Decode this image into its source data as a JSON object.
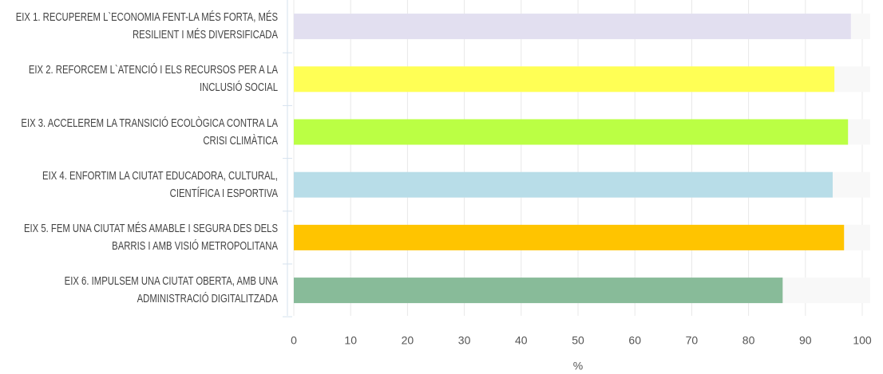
{
  "chart_data": {
    "type": "hbar",
    "categories": [
      "EIX 1. RECUPEREM L`ECONOMIA FENT-LA MÉS FORTA, MÉS RESILIENT I MÉS DIVERSIFICADA",
      "EIX 2. REFORCEM L`ATENCIÓ I ELS RECURSOS PER A LA INCLUSIÓ SOCIAL",
      "EIX 3. ACCELEREM LA TRANSICIÓ ECOLÒGICA CONTRA LA CRISI CLIMÀTICA",
      "EIX 4. ENFORTIM LA CIUTAT EDUCADORA, CULTURAL, CIENTÍFICA I ESPORTIVA",
      "EIX 5. FEM UNA CIUTAT MÉS AMABLE I SEGURA DES DELS BARRIS I AMB VISIÓ METROPOLITANA",
      "EIX 6. IMPULSEM UNA CIUTAT OBERTA, AMB UNA ADMINISTRACIÓ DIGITALITZADA"
    ],
    "values": [
      98.0,
      95.1,
      97.5,
      94.8,
      96.8,
      86.0
    ],
    "colors": [
      "#e2dff0",
      "#ffff55",
      "#bbff44",
      "#b8dde8",
      "#ffc400",
      "#88bb99"
    ],
    "xlabel": "%",
    "xlim": [
      0,
      100
    ],
    "xticks": [
      0,
      10,
      20,
      30,
      40,
      50,
      60,
      70,
      80,
      90,
      100
    ],
    "grid": true
  }
}
